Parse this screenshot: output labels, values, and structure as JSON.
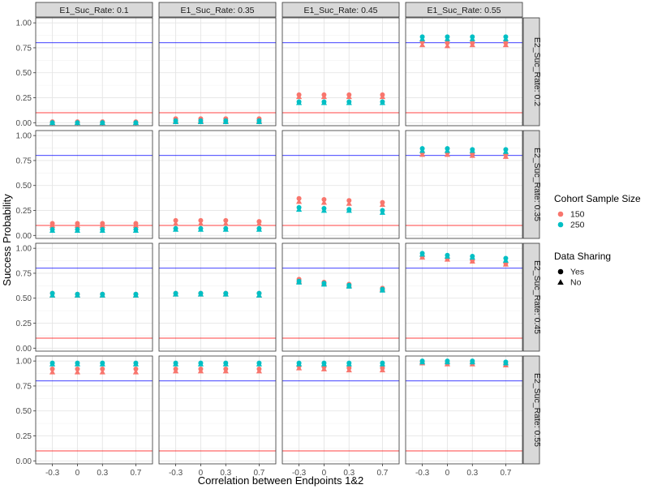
{
  "chart_data": {
    "type": "scatter",
    "xlabel": "Correlation between Endpoints 1&2",
    "ylabel": "Success Probability",
    "x": [
      -0.3,
      0,
      0.3,
      0.7
    ],
    "x_tick_labels": [
      "-0.3",
      "0",
      "0.3",
      "0.7"
    ],
    "ylim": [
      -0.03,
      1.05
    ],
    "y_ticks": [
      0.0,
      0.25,
      0.5,
      0.75,
      1.0
    ],
    "y_tick_labels": [
      "0.00",
      "0.25",
      "0.50",
      "0.75",
      "1.00"
    ],
    "grid": true,
    "col_labels": [
      "E1_Suc_Rate: 0.1",
      "E1_Suc_Rate: 0.35",
      "E1_Suc_Rate: 0.45",
      "E1_Suc_Rate: 0.55"
    ],
    "row_labels": [
      "E2_Suc_Rate: 0.2",
      "E2_Suc_Rate: 0.35",
      "E2_Suc_Rate: 0.45",
      "E2_Suc_Rate: 0.55"
    ],
    "reference_lines": [
      {
        "value": 0.8,
        "color": "#0000ff"
      },
      {
        "value": 0.1,
        "color": "#ff0000"
      }
    ],
    "legend": {
      "placement": "right",
      "color_title": "Cohort Sample Size",
      "color_entries": [
        {
          "label": "150",
          "color": "#F8766D"
        },
        {
          "label": "250",
          "color": "#00BFC4"
        }
      ],
      "shape_title": "Data Sharing",
      "shape_entries": [
        {
          "label": "Yes",
          "shape": "circle"
        },
        {
          "label": "No",
          "shape": "triangle"
        }
      ]
    },
    "panels": [
      [
        {
          "s150_yes": [
            0.01,
            0.01,
            0.01,
            0.01
          ],
          "s150_no": [
            0.0,
            0.0,
            0.0,
            0.0
          ],
          "s250_yes": [
            0.0,
            0.0,
            0.0,
            0.0
          ],
          "s250_no": [
            0.0,
            0.0,
            0.0,
            0.0
          ]
        },
        {
          "s150_yes": [
            0.04,
            0.04,
            0.04,
            0.04
          ],
          "s150_no": [
            0.02,
            0.02,
            0.02,
            0.02
          ],
          "s250_yes": [
            0.02,
            0.02,
            0.02,
            0.02
          ],
          "s250_no": [
            0.01,
            0.01,
            0.01,
            0.01
          ]
        },
        {
          "s150_yes": [
            0.28,
            0.28,
            0.28,
            0.28
          ],
          "s150_no": [
            0.26,
            0.26,
            0.26,
            0.26
          ],
          "s250_yes": [
            0.21,
            0.21,
            0.21,
            0.21
          ],
          "s250_no": [
            0.2,
            0.2,
            0.2,
            0.2
          ]
        },
        {
          "s150_yes": [
            0.81,
            0.8,
            0.8,
            0.8
          ],
          "s150_no": [
            0.78,
            0.77,
            0.78,
            0.78
          ],
          "s250_yes": [
            0.86,
            0.86,
            0.86,
            0.86
          ],
          "s250_no": [
            0.84,
            0.84,
            0.84,
            0.84
          ]
        }
      ],
      [
        {
          "s150_yes": [
            0.12,
            0.12,
            0.12,
            0.12
          ],
          "s150_no": [
            0.1,
            0.1,
            0.1,
            0.1
          ],
          "s250_yes": [
            0.06,
            0.06,
            0.06,
            0.06
          ],
          "s250_no": [
            0.05,
            0.05,
            0.05,
            0.05
          ]
        },
        {
          "s150_yes": [
            0.15,
            0.15,
            0.15,
            0.14
          ],
          "s150_no": [
            0.12,
            0.12,
            0.12,
            0.12
          ],
          "s250_yes": [
            0.07,
            0.07,
            0.07,
            0.07
          ],
          "s250_no": [
            0.06,
            0.06,
            0.06,
            0.06
          ]
        },
        {
          "s150_yes": [
            0.37,
            0.36,
            0.35,
            0.33
          ],
          "s150_no": [
            0.34,
            0.33,
            0.32,
            0.31
          ],
          "s250_yes": [
            0.28,
            0.27,
            0.26,
            0.25
          ],
          "s250_no": [
            0.26,
            0.25,
            0.25,
            0.23
          ]
        },
        {
          "s150_yes": [
            0.83,
            0.83,
            0.82,
            0.81
          ],
          "s150_no": [
            0.81,
            0.81,
            0.8,
            0.79
          ],
          "s250_yes": [
            0.87,
            0.87,
            0.86,
            0.86
          ],
          "s250_no": [
            0.85,
            0.85,
            0.85,
            0.84
          ]
        }
      ],
      [
        {
          "s150_yes": [
            0.55,
            0.54,
            0.54,
            0.54
          ],
          "s150_no": [
            0.53,
            0.53,
            0.53,
            0.53
          ],
          "s250_yes": [
            0.55,
            0.54,
            0.54,
            0.54
          ],
          "s250_no": [
            0.53,
            0.53,
            0.53,
            0.53
          ]
        },
        {
          "s150_yes": [
            0.55,
            0.55,
            0.55,
            0.55
          ],
          "s150_no": [
            0.54,
            0.54,
            0.54,
            0.53
          ],
          "s250_yes": [
            0.55,
            0.55,
            0.55,
            0.55
          ],
          "s250_no": [
            0.54,
            0.54,
            0.54,
            0.53
          ]
        },
        {
          "s150_yes": [
            0.69,
            0.66,
            0.64,
            0.6
          ],
          "s150_no": [
            0.67,
            0.65,
            0.63,
            0.59
          ],
          "s250_yes": [
            0.67,
            0.65,
            0.63,
            0.59
          ],
          "s250_no": [
            0.66,
            0.64,
            0.62,
            0.58
          ]
        },
        {
          "s150_yes": [
            0.92,
            0.9,
            0.88,
            0.85
          ],
          "s150_no": [
            0.91,
            0.89,
            0.87,
            0.84
          ],
          "s250_yes": [
            0.95,
            0.93,
            0.92,
            0.9
          ],
          "s250_no": [
            0.94,
            0.92,
            0.91,
            0.88
          ]
        }
      ],
      [
        {
          "s150_yes": [
            0.92,
            0.92,
            0.92,
            0.92
          ],
          "s150_no": [
            0.89,
            0.89,
            0.89,
            0.89
          ],
          "s250_yes": [
            0.98,
            0.98,
            0.98,
            0.98
          ],
          "s250_no": [
            0.97,
            0.97,
            0.97,
            0.97
          ]
        },
        {
          "s150_yes": [
            0.92,
            0.92,
            0.92,
            0.92
          ],
          "s150_no": [
            0.9,
            0.9,
            0.9,
            0.9
          ],
          "s250_yes": [
            0.98,
            0.98,
            0.98,
            0.98
          ],
          "s250_no": [
            0.97,
            0.97,
            0.97,
            0.97
          ]
        },
        {
          "s150_yes": [
            0.95,
            0.94,
            0.93,
            0.93
          ],
          "s150_no": [
            0.93,
            0.92,
            0.91,
            0.91
          ],
          "s250_yes": [
            0.98,
            0.98,
            0.98,
            0.98
          ],
          "s250_no": [
            0.97,
            0.97,
            0.97,
            0.97
          ]
        },
        {
          "s150_yes": [
            0.99,
            0.98,
            0.98,
            0.97
          ],
          "s150_no": [
            0.98,
            0.97,
            0.97,
            0.96
          ],
          "s250_yes": [
            1.0,
            1.0,
            1.0,
            0.99
          ],
          "s250_no": [
            0.99,
            0.99,
            0.99,
            0.98
          ]
        }
      ]
    ]
  }
}
